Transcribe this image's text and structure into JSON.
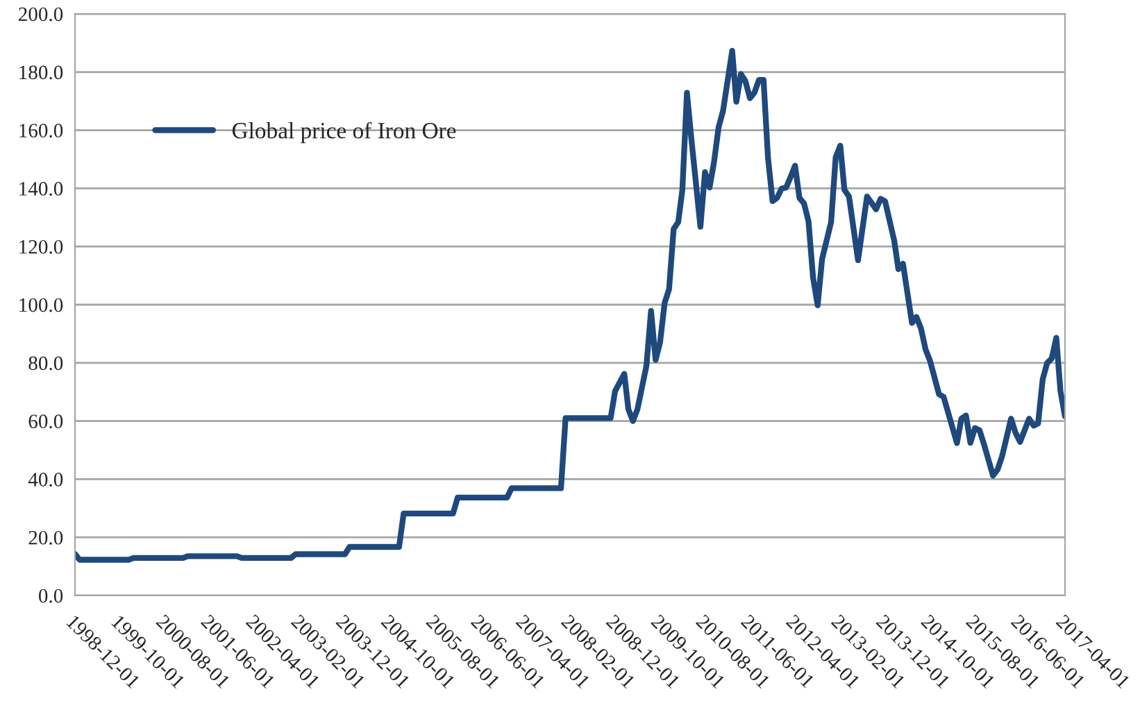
{
  "chart_data": {
    "type": "line",
    "x": [
      "1998-12-01",
      "1999-01-01",
      "1999-12-01",
      "2000-01-01",
      "2000-12-01",
      "2001-01-01",
      "2001-12-01",
      "2002-01-01",
      "2002-12-01",
      "2003-01-01",
      "2003-12-01",
      "2004-01-01",
      "2004-12-01",
      "2005-01-01",
      "2005-12-01",
      "2006-01-01",
      "2006-12-01",
      "2007-01-01",
      "2007-12-01",
      "2008-01-01",
      "2008-11-01",
      "2008-12-01",
      "2009-02-01",
      "2009-03-01",
      "2009-04-01",
      "2009-05-01",
      "2009-07-01",
      "2009-08-01",
      "2009-09-01",
      "2009-10-01",
      "2009-11-01",
      "2009-12-01",
      "2010-01-01",
      "2010-02-01",
      "2010-03-01",
      "2010-04-01",
      "2010-05-01",
      "2010-07-01",
      "2010-08-01",
      "2010-09-01",
      "2010-10-01",
      "2010-11-01",
      "2010-12-01",
      "2011-02-01",
      "2011-03-01",
      "2011-04-01",
      "2011-05-01",
      "2011-06-01",
      "2011-07-01",
      "2011-08-01",
      "2011-09-01",
      "2011-10-01",
      "2011-11-01",
      "2011-12-01",
      "2012-01-01",
      "2012-02-01",
      "2012-03-01",
      "2012-04-01",
      "2012-05-01",
      "2012-06-01",
      "2012-07-01",
      "2012-08-01",
      "2012-09-01",
      "2012-10-01",
      "2012-12-01",
      "2013-01-01",
      "2013-02-01",
      "2013-03-01",
      "2013-04-01",
      "2013-06-01",
      "2013-08-01",
      "2013-10-01",
      "2013-11-01",
      "2013-12-01",
      "2014-02-01",
      "2014-03-01",
      "2014-04-01",
      "2014-06-01",
      "2014-07-01",
      "2014-08-01",
      "2014-09-01",
      "2014-10-01",
      "2014-12-01",
      "2015-01-01",
      "2015-04-01",
      "2015-05-01",
      "2015-06-01",
      "2015-07-01",
      "2015-08-01",
      "2015-09-01",
      "2015-10-01",
      "2015-12-01",
      "2016-01-01",
      "2016-02-01",
      "2016-04-01",
      "2016-05-01",
      "2016-06-01",
      "2016-08-01",
      "2016-09-01",
      "2016-10-01",
      "2016-11-01",
      "2016-12-01",
      "2017-01-01",
      "2017-02-01",
      "2017-03-01",
      "2017-04-01"
    ],
    "series": [
      {
        "name": "Global price of Iron Ore",
        "color": "#1f497d",
        "values": [
          14.3,
          12.3,
          12.3,
          12.9,
          12.9,
          13.5,
          13.5,
          12.9,
          12.9,
          14.2,
          14.2,
          16.7,
          16.7,
          28.2,
          28.2,
          33.7,
          33.7,
          36.9,
          36.9,
          61,
          61,
          70.3,
          76.2,
          64,
          60,
          64,
          79,
          97.9,
          81,
          87,
          100.6,
          105.3,
          126,
          128.4,
          139.5,
          172.9,
          157,
          126.8,
          145.6,
          140.3,
          149,
          161,
          166.6,
          187.3,
          169.8,
          179.3,
          176.9,
          171,
          172.9,
          177.3,
          177.3,
          150.6,
          135.6,
          136.7,
          139.9,
          140.3,
          143.8,
          147.8,
          136.7,
          134.8,
          128.7,
          109.3,
          99.8,
          115.7,
          128.4,
          150.7,
          154.7,
          139.5,
          137.2,
          115.3,
          137.2,
          132.8,
          136.4,
          135.6,
          122,
          112.2,
          114.1,
          93.7,
          95.8,
          91.8,
          84.6,
          80.7,
          69.2,
          68.3,
          52.4,
          60.8,
          61.9,
          52.5,
          57.6,
          56.8,
          52,
          41.2,
          43.3,
          48,
          60.8,
          56,
          52.8,
          60.8,
          58.4,
          59.2,
          74.3,
          79.9,
          81.5,
          88.6,
          70.3,
          61.6
        ]
      }
    ],
    "xlim": [
      "1998-12-01",
      "2017-04-01"
    ],
    "xticks": [
      "1998-12-01",
      "1999-10-01",
      "2000-08-01",
      "2001-06-01",
      "2002-04-01",
      "2003-02-01",
      "2003-12-01",
      "2004-10-01",
      "2005-08-01",
      "2006-06-01",
      "2007-04-01",
      "2008-02-01",
      "2008-12-01",
      "2009-10-01",
      "2010-08-01",
      "2011-06-01",
      "2012-04-01",
      "2013-02-01",
      "2013-12-01",
      "2014-10-01",
      "2015-08-01",
      "2016-06-01",
      "2017-04-01"
    ],
    "ylim": [
      0,
      200
    ],
    "yticks": [
      {
        "value": 0,
        "label": "0.0"
      },
      {
        "value": 20,
        "label": "20.0"
      },
      {
        "value": 40,
        "label": "40.0"
      },
      {
        "value": 60,
        "label": "60.0"
      },
      {
        "value": 80,
        "label": "80.0"
      },
      {
        "value": 100,
        "label": "100.0"
      },
      {
        "value": 120,
        "label": "120.0"
      },
      {
        "value": 140,
        "label": "140.0"
      },
      {
        "value": 160,
        "label": "160.0"
      },
      {
        "value": 180,
        "label": "180.0"
      },
      {
        "value": 200,
        "label": "200.0"
      }
    ],
    "grid": "y",
    "legend": "top left",
    "marker": "none",
    "line_style": "solid"
  }
}
